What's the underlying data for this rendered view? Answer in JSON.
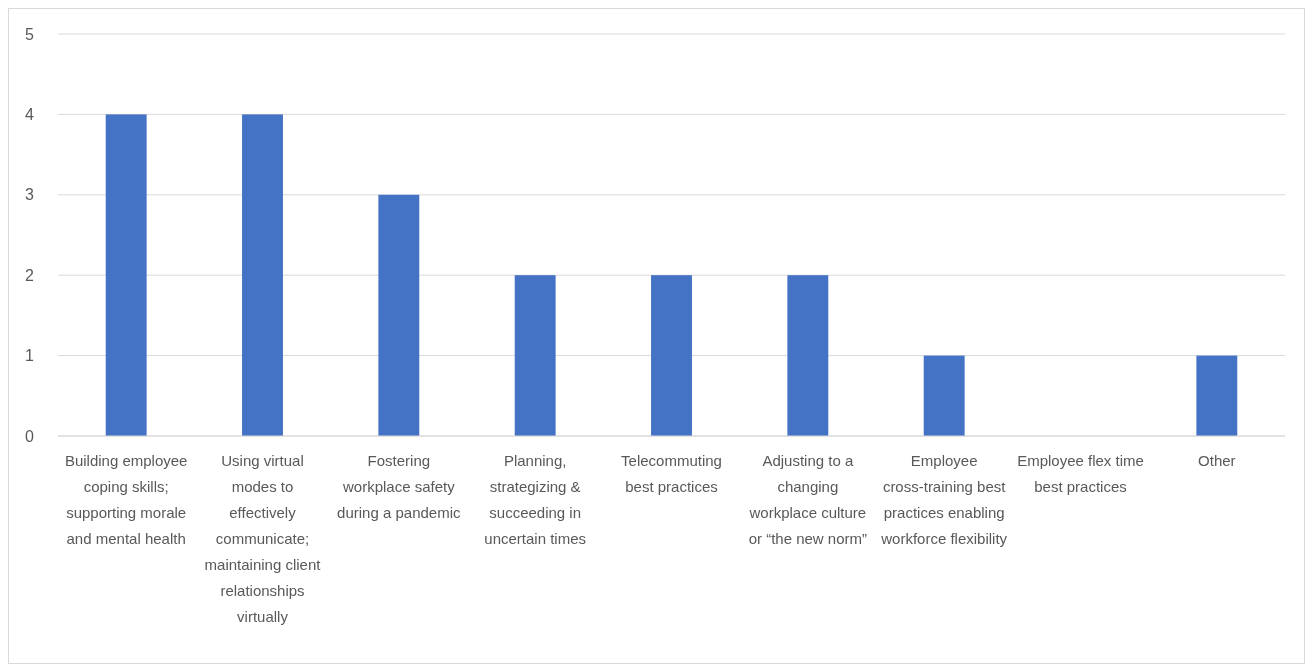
{
  "chart_data": {
    "type": "bar",
    "categories": [
      "Building employee coping skills; supporting morale and mental health",
      "Using virtual modes to effectively communicate; maintaining client relationships virtually",
      "Fostering workplace safety during a pandemic",
      "Planning, strategizing & succeeding in uncertain times",
      "Telecommuting best practices",
      "Adjusting to a changing workplace culture or “the new norm”",
      "Employee cross-training best practices enabling workforce flexibility",
      "Employee flex time best practices",
      "Other"
    ],
    "values": [
      4,
      4,
      3,
      2,
      2,
      2,
      1,
      0,
      1
    ],
    "color": "#4472c4",
    "ylim": [
      0,
      5
    ],
    "yticks": [
      0,
      1,
      2,
      3,
      4,
      5
    ],
    "grid": "y"
  }
}
